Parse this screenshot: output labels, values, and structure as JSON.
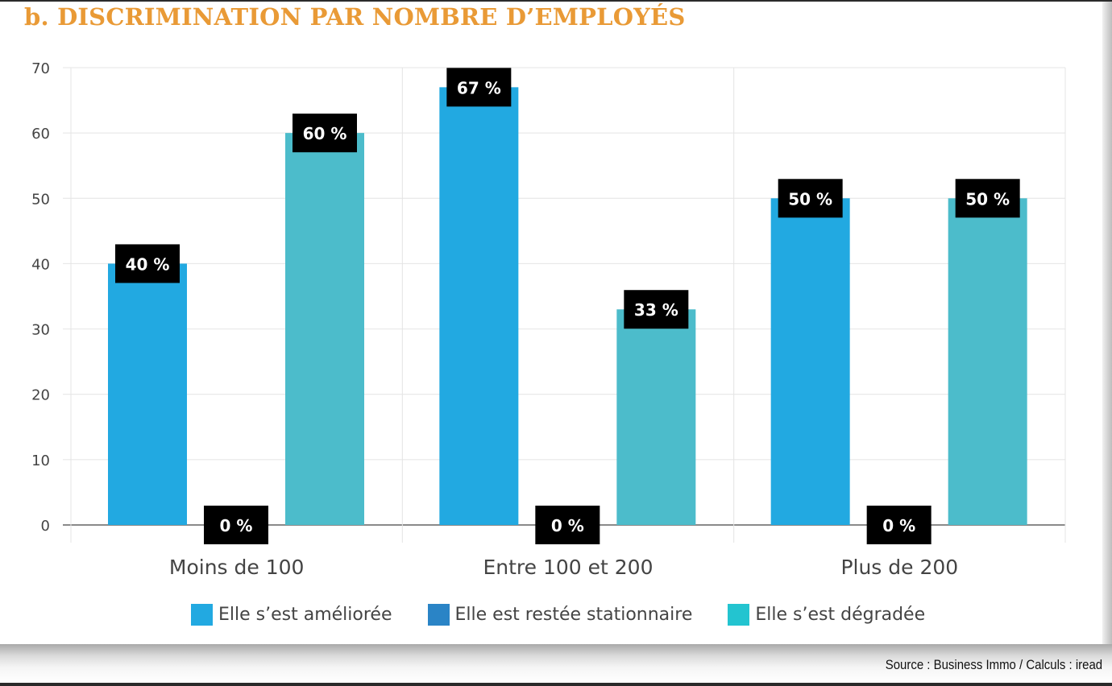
{
  "title": "b. DISCRIMINATION PAR NOMBRE D’EMPLOYÉS",
  "source": "Source : Business Immo / Calculs : iread",
  "chart_data": {
    "type": "bar",
    "title": "b. DISCRIMINATION PAR NOMBRE D’EMPLOYÉS",
    "xlabel": "",
    "ylabel": "",
    "ylim": [
      0,
      70
    ],
    "yticks": [
      0,
      10,
      20,
      30,
      40,
      50,
      60,
      70
    ],
    "grid": true,
    "legend_position": "bottom",
    "categories": [
      "Moins de 100",
      "Entre 100 et 200",
      "Plus de 200"
    ],
    "series": [
      {
        "name": "Elle s’est améliorée",
        "color": "#22a9e1",
        "values": [
          40,
          67,
          50
        ],
        "labels": [
          "40 %",
          "67 %",
          "50 %"
        ]
      },
      {
        "name": "Elle est restée stationnaire",
        "color": "#2a84c6",
        "values": [
          0,
          0,
          0
        ],
        "labels": [
          "0 %",
          "0 %",
          "0 %"
        ]
      },
      {
        "name": "Elle s’est dégradée",
        "color": "#4cbccb",
        "values": [
          60,
          33,
          50
        ],
        "labels": [
          "60 %",
          "33 %",
          "50 %"
        ]
      }
    ],
    "legend_swatch_colors": [
      "#22a9e1",
      "#2a84c6",
      "#23c4d0"
    ]
  }
}
